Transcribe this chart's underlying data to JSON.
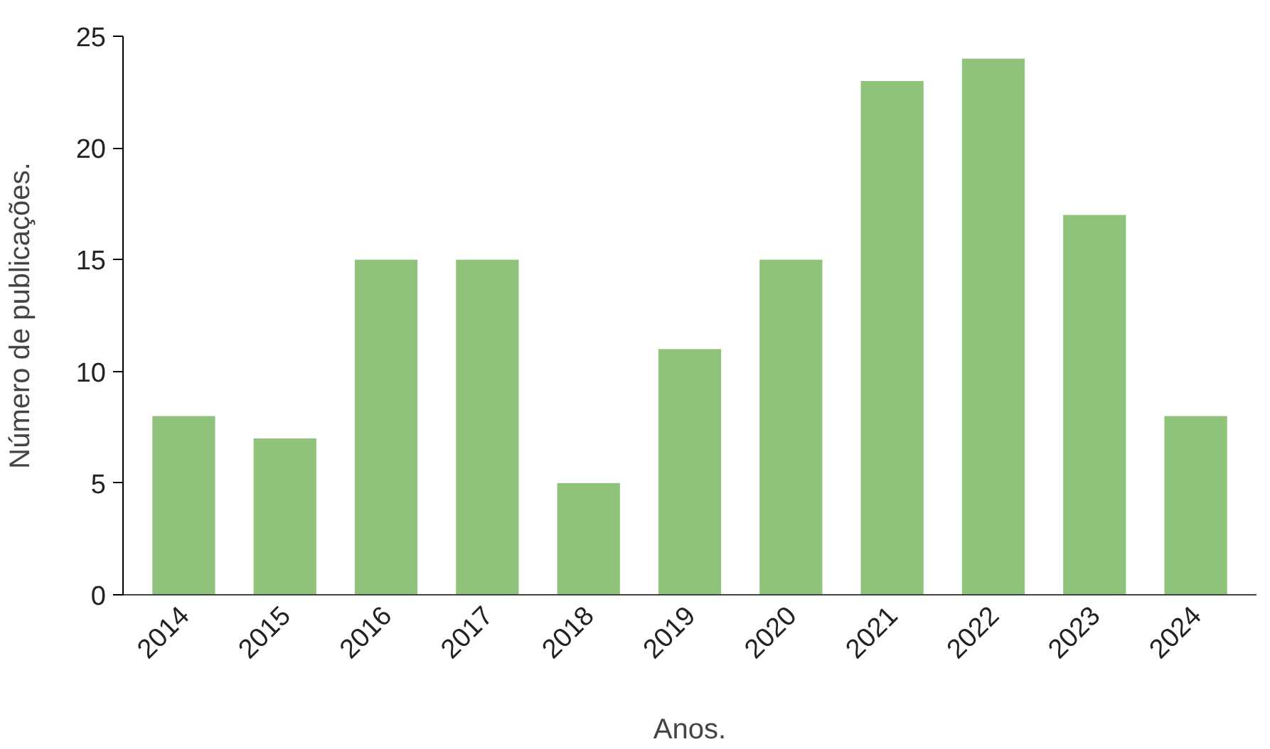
{
  "chart_data": {
    "type": "bar",
    "xlabel": "Anos.",
    "ylabel": "Número de publicações.",
    "categories": [
      "2014",
      "2015",
      "2016",
      "2017",
      "2018",
      "2019",
      "2020",
      "2021",
      "2022",
      "2023",
      "2024"
    ],
    "values": [
      8,
      7,
      15,
      15,
      5,
      11,
      15,
      23,
      24,
      17,
      8
    ],
    "color": "#8fc27a",
    "ylim": [
      0,
      25
    ],
    "yticks": [
      0,
      5,
      10,
      15,
      20,
      25
    ],
    "grid": false
  }
}
